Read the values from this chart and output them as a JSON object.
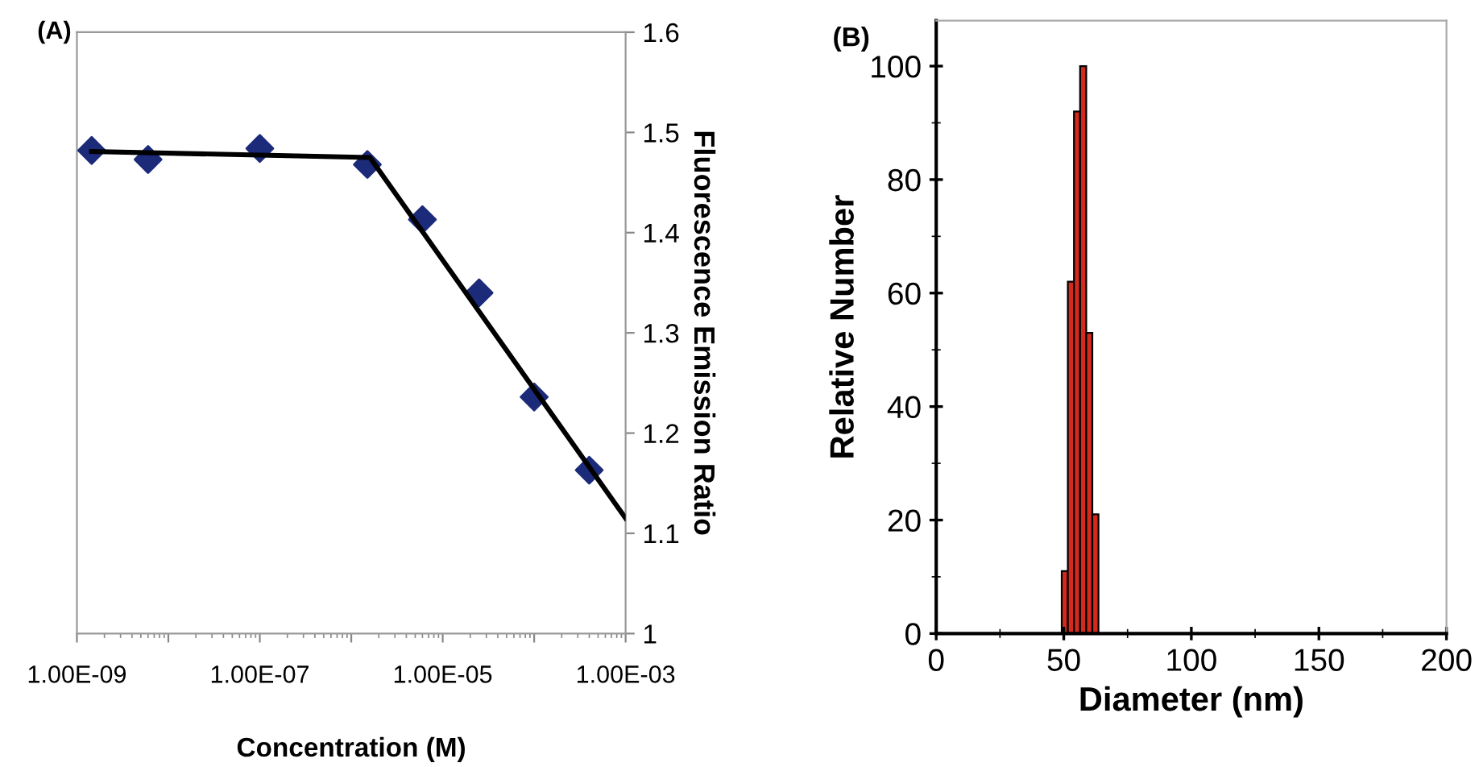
{
  "chart_data": [
    {
      "type": "scatter",
      "title": "(A)",
      "xlabel": "Concentration (M)",
      "ylabel": "Fluorescence Emission Ratio",
      "log": "x",
      "xlim": [
        1e-09,
        0.001
      ],
      "ylim": [
        1,
        1.6
      ],
      "xticks": [
        {
          "value": 1e-09,
          "label": "1.00E-09"
        },
        {
          "value": 1e-08,
          "label": null
        },
        {
          "value": 1e-07,
          "label": "1.00E-07"
        },
        {
          "value": 1e-06,
          "label": null
        },
        {
          "value": 1e-05,
          "label": "1.00E-05"
        },
        {
          "value": 0.0001,
          "label": null
        },
        {
          "value": 0.001,
          "label": "1.00E-03"
        }
      ],
      "yticks": [
        1,
        1.1,
        1.2,
        1.3,
        1.4,
        1.5,
        1.6
      ],
      "grid": false,
      "legend": false,
      "series": [
        {
          "type": "scatter",
          "color": "#1c2a7a",
          "marker": "diamond",
          "x": [
            1.45e-09,
            6e-09,
            1e-07,
            1.5e-06,
            6e-06,
            2.5e-05,
            0.0001,
            0.0004
          ],
          "values": [
            1.482,
            1.473,
            1.484,
            1.468,
            1.413,
            1.34,
            1.236,
            1.163
          ]
        },
        {
          "type": "line",
          "color": "#000000",
          "marker": "none",
          "line_style": "solid",
          "x": [
            1.45e-09,
            1.6e-06,
            0.001
          ],
          "values": [
            1.481,
            1.475,
            1.115
          ]
        }
      ]
    },
    {
      "type": "histogram",
      "title": "(B)",
      "xlabel": "Diameter (nm)",
      "ylabel": "Relative Number",
      "bins": [
        49.2,
        51.6,
        54.0,
        56.4,
        58.8,
        61.2,
        63.6
      ],
      "values": [
        11,
        62,
        92,
        100,
        53,
        21
      ],
      "color": "#d42a1e",
      "xlim": [
        0,
        200
      ],
      "ylim": [
        0,
        108
      ],
      "xticks": [
        0,
        50,
        100,
        150,
        200
      ],
      "yticks": [
        0,
        20,
        40,
        60,
        80,
        100
      ],
      "grid": false,
      "legend": false
    }
  ]
}
